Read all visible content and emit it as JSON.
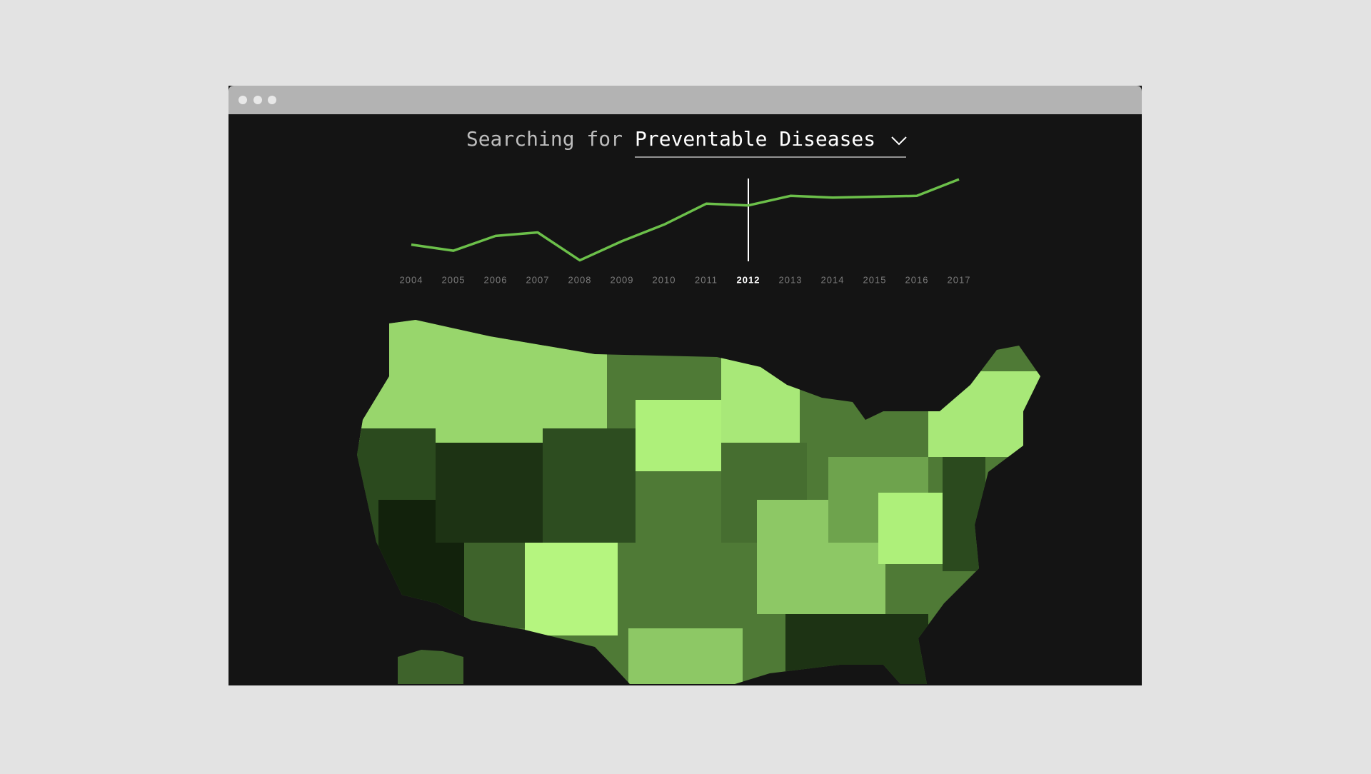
{
  "search": {
    "prefix": "Searching for",
    "topic": "Preventable Diseases"
  },
  "chart_data": {
    "type": "line",
    "x": [
      2004,
      2005,
      2006,
      2007,
      2008,
      2009,
      2010,
      2011,
      2012,
      2013,
      2014,
      2015,
      2016,
      2017
    ],
    "values": [
      20,
      13,
      30,
      34,
      2,
      24,
      43,
      67,
      65,
      76,
      74,
      75,
      76,
      95
    ],
    "color": "#6cc04a",
    "ylim": [
      0,
      100
    ],
    "highlight_x": 2012
  }
}
